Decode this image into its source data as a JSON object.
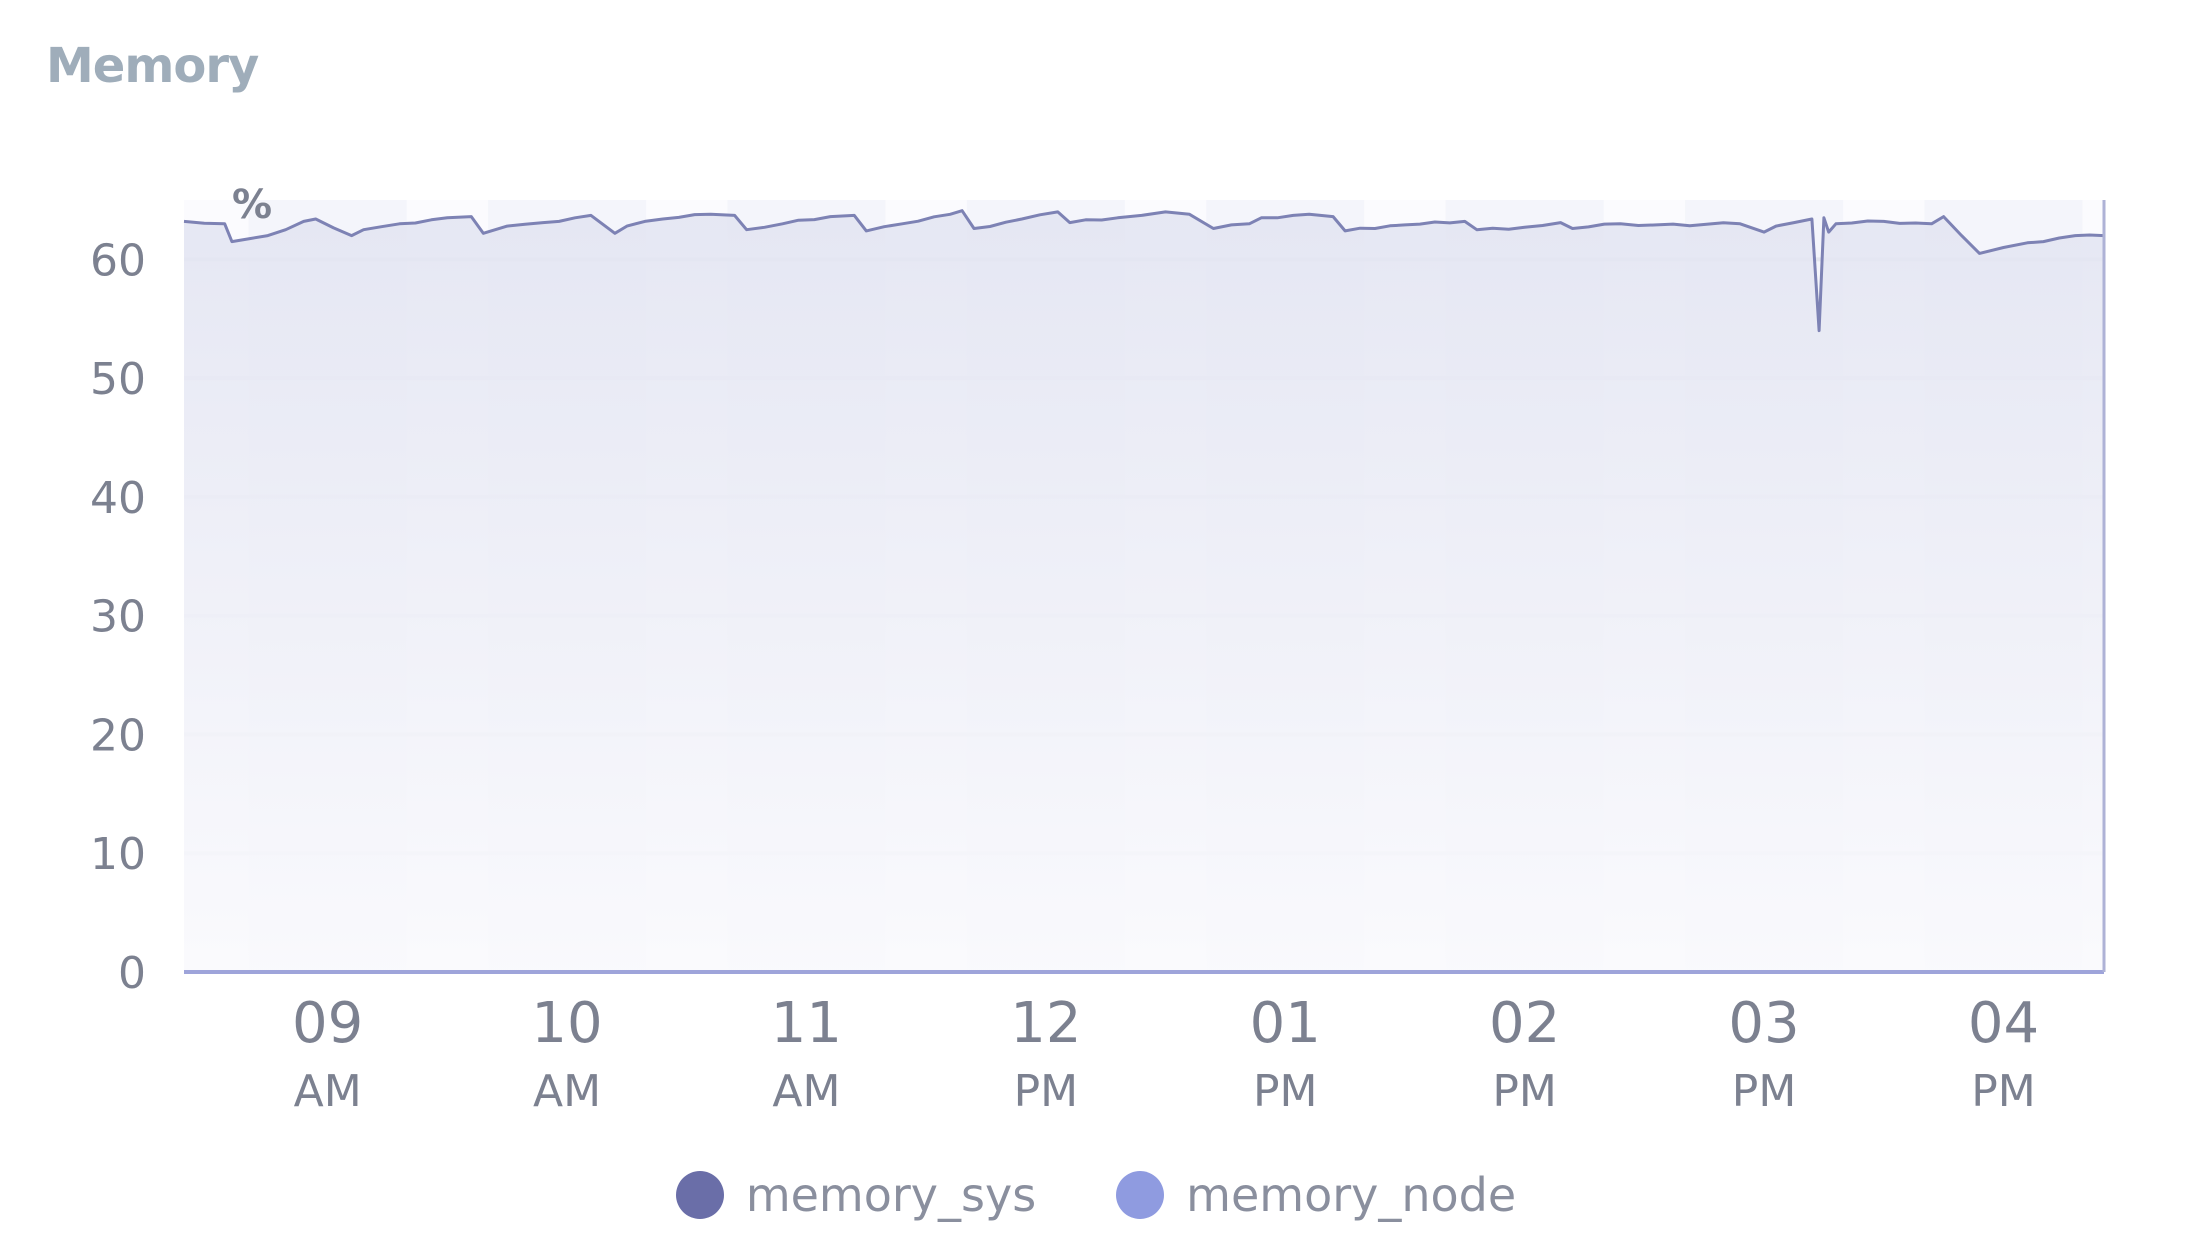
{
  "panel": {
    "title": "Memory"
  },
  "chart_data": {
    "type": "area",
    "title": "Memory",
    "unit": "%",
    "ylim": [
      0,
      65
    ],
    "yticks": [
      "0",
      "10",
      "20",
      "30",
      "40",
      "50",
      "60"
    ],
    "xticks": [
      {
        "hour": "09",
        "ampm": "AM"
      },
      {
        "hour": "10",
        "ampm": "AM"
      },
      {
        "hour": "11",
        "ampm": "AM"
      },
      {
        "hour": "12",
        "ampm": "PM"
      },
      {
        "hour": "01",
        "ampm": "PM"
      },
      {
        "hour": "02",
        "ampm": "PM"
      },
      {
        "hour": "03",
        "ampm": "PM"
      },
      {
        "hour": "04",
        "ampm": "PM"
      }
    ],
    "grid": true,
    "legend_placement": "bottom",
    "series": [
      {
        "name": "memory_sys",
        "color": "#6a6ea8",
        "x_hours": [
          8.4,
          8.57,
          8.6,
          8.75,
          8.9,
          8.95,
          9.1,
          9.15,
          9.3,
          9.5,
          9.6,
          9.65,
          9.75,
          9.9,
          10.1,
          10.2,
          10.25,
          10.4,
          10.6,
          10.7,
          10.75,
          10.9,
          11.1,
          11.2,
          11.25,
          11.4,
          11.6,
          11.65,
          11.7,
          11.9,
          12.05,
          12.1,
          12.3,
          12.4,
          12.5,
          12.6,
          12.7,
          12.85,
          12.9,
          13.1,
          13.2,
          13.25,
          13.5,
          13.75,
          13.8,
          14.0,
          14.15,
          14.2,
          14.4,
          14.55,
          14.9,
          15.0,
          15.05,
          15.2,
          15.23,
          15.25,
          15.27,
          15.3,
          15.5,
          15.7,
          15.75,
          15.9,
          16.0,
          16.1,
          16.3
        ],
        "values": [
          63.2,
          63.0,
          61.5,
          62.0,
          63.2,
          63.4,
          62.0,
          62.5,
          63.0,
          63.5,
          63.6,
          62.2,
          62.8,
          63.1,
          63.7,
          62.2,
          62.8,
          63.4,
          63.8,
          63.7,
          62.5,
          63.0,
          63.6,
          63.7,
          62.4,
          63.0,
          63.8,
          64.1,
          62.6,
          63.4,
          64.0,
          63.1,
          63.5,
          63.7,
          64.0,
          63.8,
          62.6,
          63.0,
          63.5,
          63.8,
          63.6,
          62.4,
          62.9,
          63.2,
          62.5,
          62.7,
          63.1,
          62.6,
          63.0,
          62.9,
          63.0,
          62.3,
          62.8,
          63.4,
          54.0,
          63.5,
          62.3,
          63.0,
          63.2,
          63.0,
          63.6,
          60.5,
          61.0,
          61.4,
          62.0
        ]
      },
      {
        "name": "memory_node",
        "color": "#8f9be0"
      }
    ]
  }
}
